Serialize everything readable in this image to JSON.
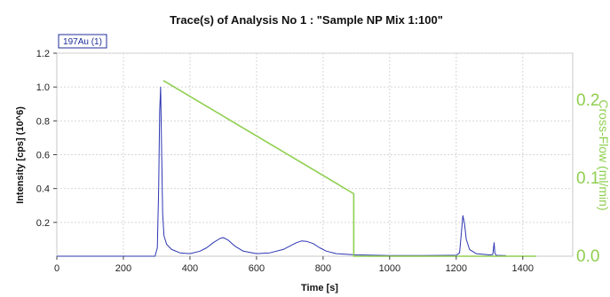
{
  "chart_data": {
    "type": "line",
    "title": "Trace(s) of Analysis No 1 : \"Sample NP Mix 1:100\"",
    "xlabel": "Time [s]",
    "ylabel": "Intensity [cps] (10^6)",
    "y2label": "Cross-Flow (ml/min)",
    "xlim": [
      0,
      1550
    ],
    "ylim": [
      0,
      1.2
    ],
    "y2lim": [
      0,
      0.26
    ],
    "x_ticks": [
      "0",
      "200",
      "400",
      "600",
      "800",
      "1000",
      "1200",
      "1400"
    ],
    "y_ticks": [
      "0.2",
      "0.4",
      "0.6",
      "0.8",
      "1.0",
      "1.2"
    ],
    "y2_ticks": [
      "0.0",
      "0.1",
      "0.2"
    ],
    "grid": true,
    "legend": "top-left",
    "series": [
      {
        "name": "197Au (1)",
        "axis": "left",
        "color": "#2b35b0",
        "x": [
          0,
          295,
          302,
          306,
          309,
          312,
          315,
          318,
          322,
          330,
          345,
          370,
          400,
          430,
          450,
          470,
          490,
          500,
          515,
          535,
          560,
          600,
          640,
          680,
          700,
          720,
          735,
          750,
          770,
          790,
          810,
          840,
          900,
          1000,
          1100,
          1200,
          1210,
          1216,
          1220,
          1225,
          1230,
          1240,
          1260,
          1300,
          1310,
          1314,
          1316,
          1320,
          1350
        ],
        "y": [
          0,
          0,
          0.05,
          0.4,
          0.85,
          1.0,
          0.6,
          0.25,
          0.12,
          0.07,
          0.04,
          0.02,
          0.015,
          0.03,
          0.05,
          0.08,
          0.105,
          0.11,
          0.095,
          0.06,
          0.03,
          0.015,
          0.02,
          0.04,
          0.06,
          0.08,
          0.09,
          0.088,
          0.075,
          0.05,
          0.03,
          0.015,
          0.008,
          0.004,
          0.004,
          0.005,
          0.02,
          0.15,
          0.24,
          0.19,
          0.1,
          0.04,
          0.015,
          0.008,
          0.01,
          0.08,
          0.02,
          0.005,
          0.003
        ]
      },
      {
        "name": "Cross-Flow",
        "axis": "right",
        "color": "#8fcf50",
        "x": [
          320,
          892,
          892,
          1440
        ],
        "y": [
          0.225,
          0.08,
          0,
          0
        ]
      }
    ]
  }
}
